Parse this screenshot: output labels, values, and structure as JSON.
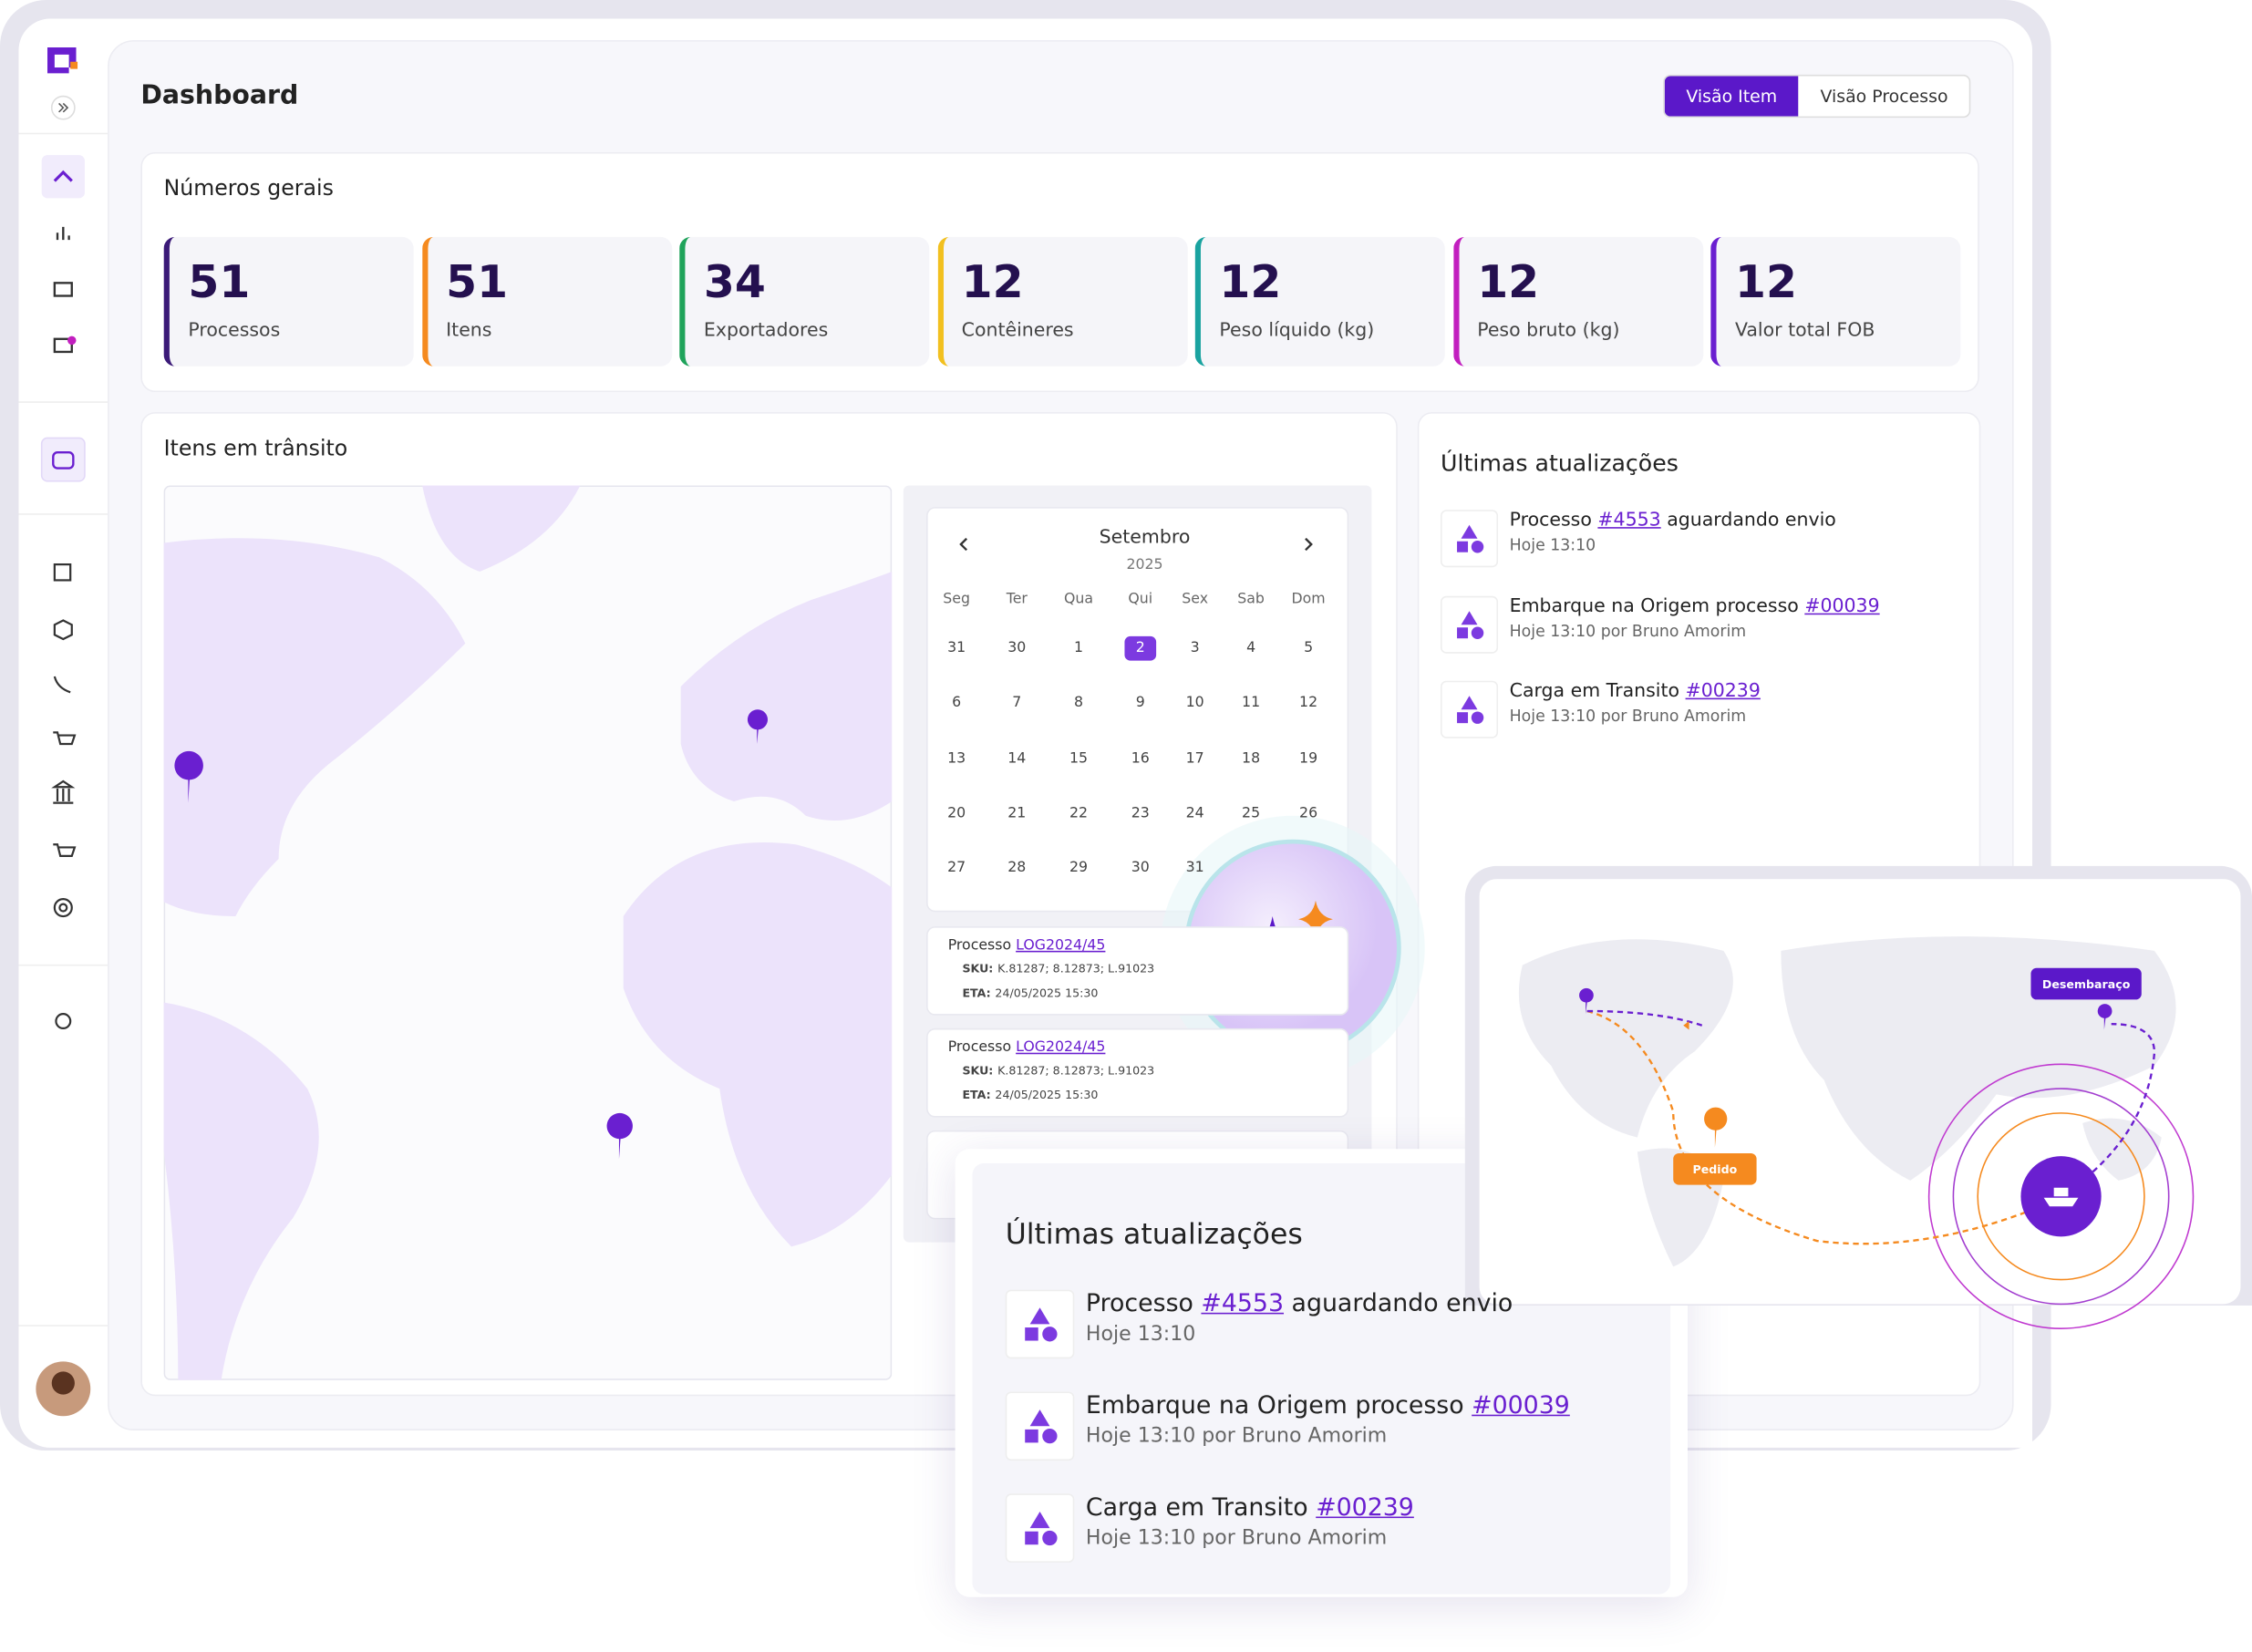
{
  "header": {
    "title": "Dashboard",
    "toggle": [
      "Visão Item",
      "Visão Processo"
    ],
    "active": 0
  },
  "summary": {
    "title": "Números gerais",
    "cards": [
      {
        "value": 51,
        "label": "Processos",
        "color": "#3b1a78"
      },
      {
        "value": 51,
        "label": "Itens",
        "color": "#f58a1f"
      },
      {
        "value": 34,
        "label": "Exportadores",
        "color": "#1fa35b"
      },
      {
        "value": 12,
        "label": "Contêineres",
        "color": "#f2c01f"
      },
      {
        "value": 12,
        "label": "Peso líquido (kg)",
        "color": "#1aa3a0"
      },
      {
        "value": 12,
        "label": "Peso bruto (kg)",
        "color": "#c21fbf"
      },
      {
        "value": 12,
        "label": "Valor total FOB",
        "color": "#6a1fd0"
      }
    ]
  },
  "transit": {
    "title": "Itens em trânsito"
  },
  "calendar": {
    "month": "Setembro",
    "year": 2025,
    "weekdays": [
      "Seg",
      "Ter",
      "Qua",
      "Qui",
      "Sex",
      "Sab",
      "Dom"
    ],
    "rows": [
      [
        31,
        30,
        1,
        2,
        3,
        4,
        5
      ],
      [
        6,
        7,
        8,
        9,
        10,
        11,
        12
      ],
      [
        13,
        14,
        15,
        16,
        17,
        18,
        19
      ],
      [
        20,
        21,
        22,
        23,
        24,
        25,
        26
      ],
      [
        27,
        28,
        29,
        30,
        31
      ]
    ],
    "selected": 2
  },
  "processes": [
    {
      "label": "Processo",
      "link": "LOG2024/45",
      "sku_label": "SKU:",
      "sku": "K.81287; 8.12873; L.91023",
      "eta_label": "ETA:",
      "eta": "24/05/2025 15:30"
    },
    {
      "label": "Processo",
      "link": "LOG2024/45",
      "sku_label": "SKU:",
      "sku": "K.81287; 8.12873; L.91023",
      "eta_label": "ETA:",
      "eta": "24/05/2025 15:30"
    }
  ],
  "updates": {
    "title": "Últimas atualizações",
    "items": [
      {
        "text": "Processo",
        "link": "#4553",
        "after": "aguardando envio",
        "meta": "Hoje 13:10"
      },
      {
        "text": "Embarque na Origem processo",
        "link": "#00039",
        "meta": "Hoje 13:10 por Bruno Amorim"
      },
      {
        "text": "Carga em Transito",
        "link": "#00239",
        "meta": "Hoje 13:10 por Bruno Amorim"
      }
    ]
  },
  "route_map": {
    "destination": "Desembaraço",
    "origin": "Pedido"
  }
}
